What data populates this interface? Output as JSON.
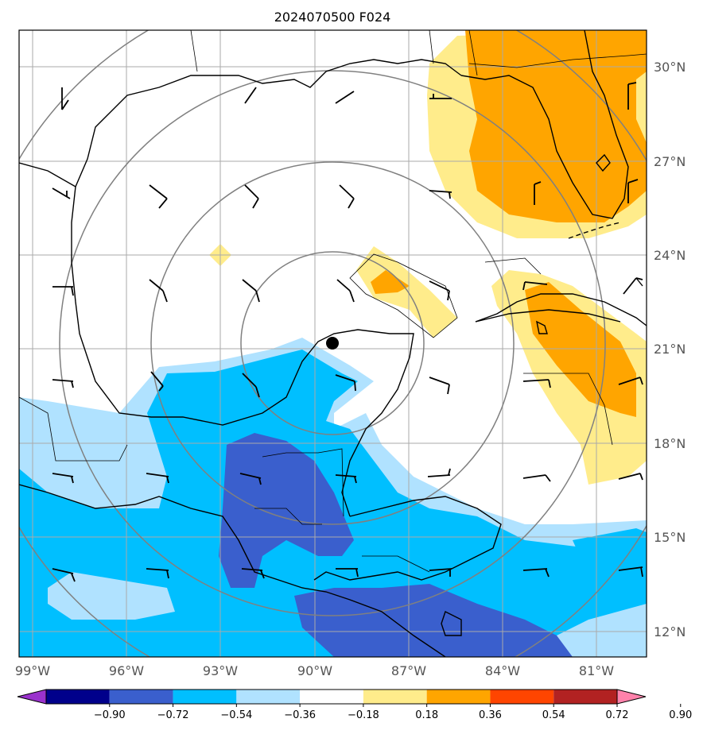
{
  "title": "2024070500 F024",
  "lat_labels": [
    "30°N",
    "27°N",
    "24°N",
    "21°N",
    "18°N",
    "15°N",
    "12°N"
  ],
  "lon_labels": [
    "99°W",
    "96°W",
    "93°W",
    "90°W",
    "87°W",
    "84°W",
    "81°W"
  ],
  "colorbar": {
    "ticks": [
      "−0.90",
      "−0.72",
      "−0.54",
      "−0.36",
      "−0.18",
      "0.18",
      "0.36",
      "0.54",
      "0.72",
      "0.90"
    ],
    "colors": [
      "#9a32cd",
      "#00008b",
      "#3a5fcd",
      "#00bfff",
      "#b0e2ff",
      "#ffffff",
      "#ffec8b",
      "#ffa500",
      "#ff4500",
      "#b22222",
      "#ff82ab"
    ]
  },
  "field_colors": {
    "neg_light": "#b0e2ff",
    "neg_mid": "#00bfff",
    "neg_dark": "#3a5fcd",
    "pos_light": "#ffec8b",
    "pos_mid": "#ffa500"
  },
  "storm_center_marker": "black-dot",
  "range_rings": "concentric-circles",
  "wind_barbs": "wind-barb-icons"
}
